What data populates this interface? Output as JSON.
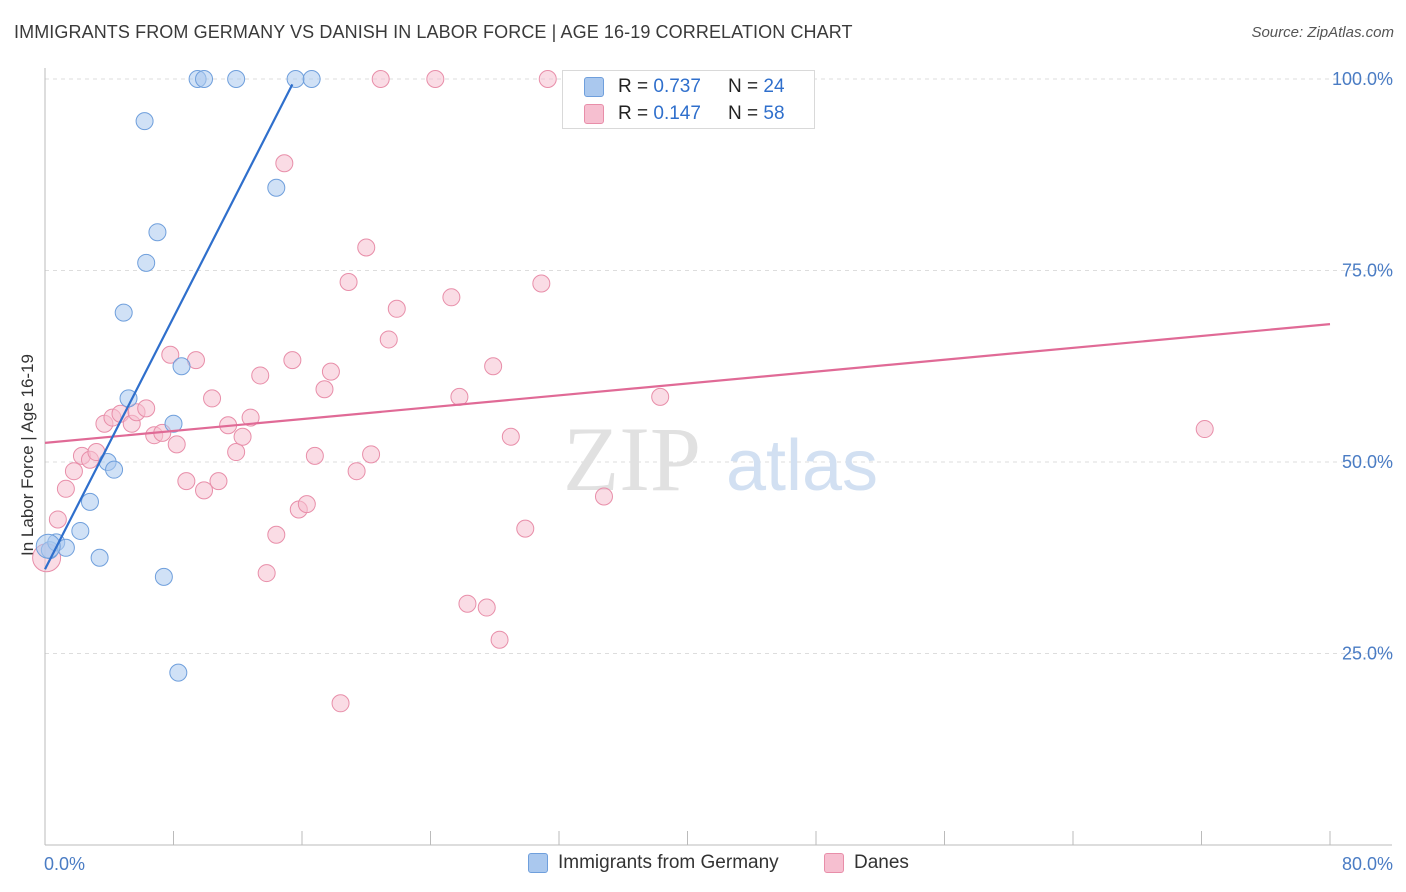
{
  "header": {
    "title": "IMMIGRANTS FROM GERMANY VS DANISH IN LABOR FORCE | AGE 16-19 CORRELATION CHART",
    "source": "Source: ZipAtlas.com"
  },
  "watermark": {
    "zip": "ZIP",
    "atlas": "atlas"
  },
  "legend": {
    "germany": {
      "r_label": "R = ",
      "r_value": "0.737",
      "n_label": "N = ",
      "n_value": "24",
      "name": "Immigrants from Germany"
    },
    "danes": {
      "r_label": "R = ",
      "r_value": "0.147",
      "n_label": "N = ",
      "n_value": "58",
      "name": "Danes"
    }
  },
  "colors": {
    "germany_fill": "#aac8ee",
    "germany_stroke": "#6f9fdc",
    "germany_line": "#2f6fcc",
    "danes_fill": "#f6bfd0",
    "danes_stroke": "#e88ea9",
    "danes_line": "#e06a96",
    "grid": "#dddddd",
    "tick_text": "#4a7cc4"
  },
  "chart_data": {
    "type": "scatter",
    "title": "IMMIGRANTS FROM GERMANY VS DANISH IN LABOR FORCE | AGE 16-19 CORRELATION CHART",
    "xlabel": "",
    "ylabel": "In Labor Force | Age 16-19",
    "xlim": [
      0,
      80
    ],
    "ylim": [
      0,
      102
    ],
    "x_tick_labels": [
      "0.0%",
      "80.0%"
    ],
    "y_ticks": [
      25,
      50,
      75,
      100
    ],
    "y_tick_labels": [
      "25.0%",
      "50.0%",
      "75.0%",
      "100.0%"
    ],
    "grid": true,
    "legend_position": "top-center",
    "series": [
      {
        "name": "Immigrants from Germany",
        "points": [
          [
            0.3,
            38.5
          ],
          [
            0.7,
            39.5
          ],
          [
            1.3,
            38.8
          ],
          [
            2.2,
            41.0
          ],
          [
            2.8,
            44.8
          ],
          [
            3.4,
            37.5
          ],
          [
            3.9,
            50.0
          ],
          [
            4.3,
            49.0
          ],
          [
            4.9,
            69.5
          ],
          [
            5.2,
            58.3
          ],
          [
            6.2,
            94.5
          ],
          [
            6.3,
            76.0
          ],
          [
            7.0,
            80.0
          ],
          [
            7.4,
            35.0
          ],
          [
            8.0,
            55.0
          ],
          [
            8.3,
            22.5
          ],
          [
            8.5,
            62.5
          ],
          [
            9.5,
            100.0
          ],
          [
            9.9,
            100.0
          ],
          [
            11.9,
            100.0
          ],
          [
            14.4,
            85.8
          ],
          [
            15.6,
            100.0
          ],
          [
            16.6,
            100.0
          ],
          [
            0.2,
            39.0
          ]
        ],
        "trend": {
          "x": [
            0.0,
            15.4
          ],
          "y": [
            36.0,
            99.3
          ]
        }
      },
      {
        "name": "Danes",
        "points": [
          [
            0.1,
            37.5
          ],
          [
            0.8,
            42.5
          ],
          [
            1.3,
            46.5
          ],
          [
            1.8,
            48.8
          ],
          [
            2.3,
            50.8
          ],
          [
            2.8,
            50.3
          ],
          [
            3.2,
            51.3
          ],
          [
            3.7,
            55.0
          ],
          [
            4.2,
            55.8
          ],
          [
            4.7,
            56.3
          ],
          [
            5.4,
            55.0
          ],
          [
            5.7,
            56.5
          ],
          [
            6.3,
            57.0
          ],
          [
            6.8,
            53.5
          ],
          [
            7.3,
            53.8
          ],
          [
            7.8,
            64.0
          ],
          [
            8.2,
            52.3
          ],
          [
            8.8,
            47.5
          ],
          [
            9.4,
            63.3
          ],
          [
            9.9,
            46.3
          ],
          [
            10.4,
            58.3
          ],
          [
            10.8,
            47.5
          ],
          [
            11.4,
            54.8
          ],
          [
            11.9,
            51.3
          ],
          [
            12.3,
            53.3
          ],
          [
            12.8,
            55.8
          ],
          [
            13.4,
            61.3
          ],
          [
            13.8,
            35.5
          ],
          [
            14.4,
            40.5
          ],
          [
            14.9,
            89.0
          ],
          [
            15.4,
            63.3
          ],
          [
            15.8,
            43.8
          ],
          [
            16.3,
            44.5
          ],
          [
            16.8,
            50.8
          ],
          [
            17.4,
            59.5
          ],
          [
            17.8,
            61.8
          ],
          [
            18.4,
            18.5
          ],
          [
            18.9,
            73.5
          ],
          [
            19.4,
            48.8
          ],
          [
            20.0,
            78.0
          ],
          [
            20.3,
            51.0
          ],
          [
            20.9,
            100.0
          ],
          [
            21.4,
            66.0
          ],
          [
            21.9,
            70.0
          ],
          [
            24.3,
            100.0
          ],
          [
            25.3,
            71.5
          ],
          [
            25.8,
            58.5
          ],
          [
            26.3,
            31.5
          ],
          [
            27.5,
            31.0
          ],
          [
            27.9,
            62.5
          ],
          [
            28.3,
            26.8
          ],
          [
            29.0,
            53.3
          ],
          [
            29.9,
            41.3
          ],
          [
            30.9,
            73.3
          ],
          [
            31.3,
            100.0
          ],
          [
            34.8,
            45.5
          ],
          [
            38.3,
            58.5
          ],
          [
            72.2,
            54.3
          ]
        ],
        "trend": {
          "x": [
            0.0,
            80.0
          ],
          "y": [
            52.5,
            68.0
          ]
        }
      }
    ]
  }
}
